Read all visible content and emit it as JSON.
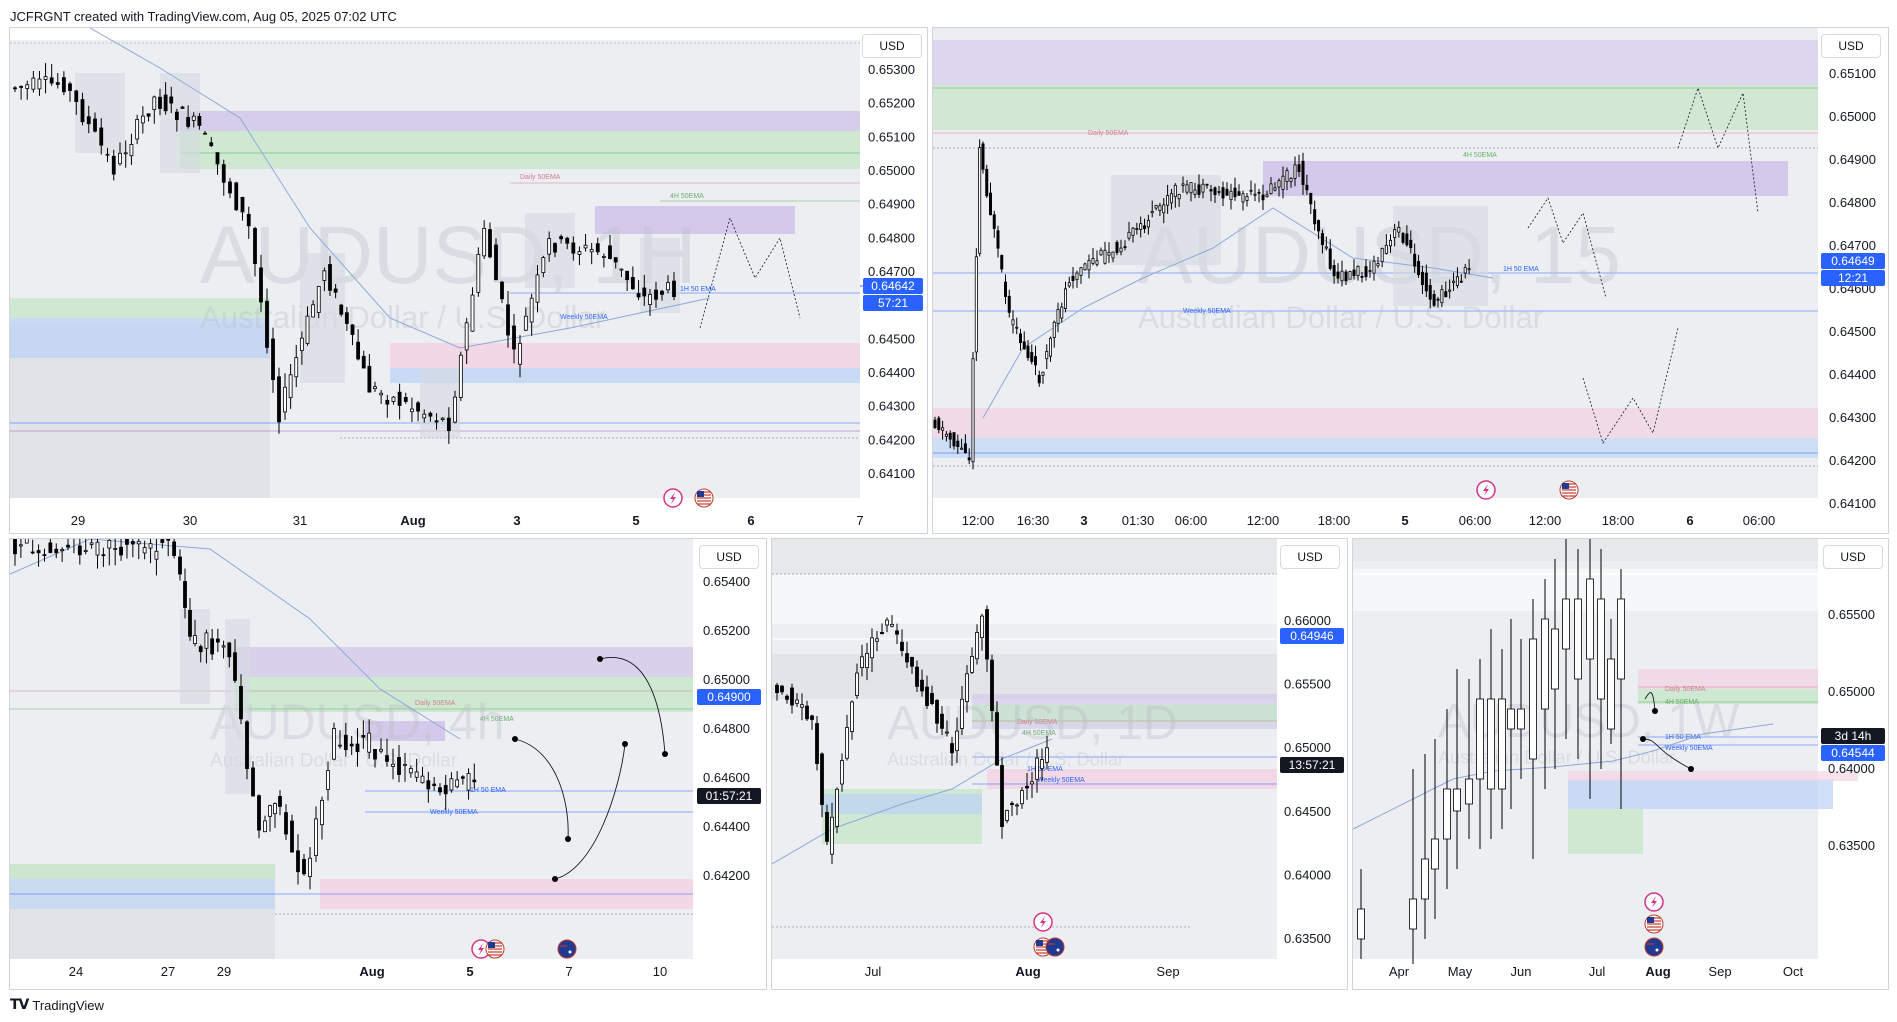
{
  "header_text": "JCFRGNT created with TradingView.com, Aug 05, 2025 07:02 UTC",
  "footer_text": "TradingView",
  "colors": {
    "up": "#ffffff",
    "down": "#000000",
    "ema": "#8fa8d8",
    "price_badge": "#2962ff",
    "timer_badge": "#131722",
    "green_zone": "#c8e6c9",
    "purple_zone": "#d1c4e9",
    "pink_zone": "#f3d5e4",
    "blue_zone": "#bbd3f5",
    "grey_zone": "#e0e3e8",
    "bg_zone": "#eceef2"
  },
  "icons": [
    "lightning-icon",
    "us-flag-icon",
    "au-flag-icon",
    "tradingview-logo-icon"
  ],
  "panels": [
    {
      "id": "tl",
      "currency": "USD",
      "watermark_symbol": "AUDUSD, 1H",
      "watermark_name": "Australian Dollar / U.S. Dollar",
      "price_labels": [
        "0.65300",
        "0.65200",
        "0.65100",
        "0.65000",
        "0.64900",
        "0.64800",
        "0.64700",
        "0.64600",
        "0.64500",
        "0.64400",
        "0.64300",
        "0.64200",
        "0.64100"
      ],
      "time_labels": [
        "29",
        "30",
        "31",
        "Aug",
        "3",
        "5",
        "6",
        "7"
      ],
      "price_badge": "0.64642",
      "timer_badge": "57:21",
      "level_labels": [
        "Daily 50EMA",
        "4H 50EMA",
        "1H 50 EMA",
        "Weekly 50EMA"
      ],
      "icons": [
        "lightning-icon",
        "us-flag-icon"
      ],
      "chart_data": {
        "type": "candlestick",
        "series": "AUDUSD",
        "ylim": [
          0.6408,
          0.6536
        ],
        "last": 0.64642
      }
    },
    {
      "id": "tr",
      "currency": "USD",
      "watermark_symbol": "AUDUSD, 15",
      "watermark_name": "Australian Dollar / U.S. Dollar",
      "price_labels": [
        "0.65100",
        "0.65000",
        "0.64900",
        "0.64800",
        "0.64700",
        "0.64600",
        "0.64500",
        "0.64400",
        "0.64300",
        "0.64200",
        "0.64100"
      ],
      "time_labels": [
        "12:00",
        "16:30",
        "3",
        "01:30",
        "06:00",
        "12:00",
        "18:00",
        "5",
        "06:00",
        "12:00",
        "18:00",
        "6",
        "06:00"
      ],
      "price_badge": "0.64649",
      "timer_badge": "12:21",
      "level_labels": [
        "Daily 50EMA",
        "4H 50EMA",
        "1H 50 EMA",
        "Weekly 50EMA"
      ],
      "icons": [
        "lightning-icon",
        "us-flag-icon"
      ],
      "chart_data": {
        "type": "candlestick",
        "series": "AUDUSD",
        "ylim": [
          0.6408,
          0.6516
        ],
        "last": 0.64649
      }
    },
    {
      "id": "bl",
      "currency": "USD",
      "watermark_symbol": "AUDUSD, 4h",
      "watermark_name": "Australian Dollar / U.S. Dollar",
      "price_labels": [
        "0.65400",
        "0.65200",
        "0.65000",
        "0.64800",
        "0.64600",
        "0.64400",
        "0.64200"
      ],
      "time_labels": [
        "24",
        "27",
        "29",
        "Aug",
        "5",
        "7",
        "10"
      ],
      "price_badge": "0.64900",
      "timer_badge": "01:57:21",
      "level_labels": [
        "Daily 50EMA",
        "4H 50EMA",
        "1H 50 EMA",
        "Weekly 50EMA"
      ],
      "icons": [
        "lightning-icon",
        "us-flag-icon",
        "au-flag-icon"
      ],
      "chart_data": {
        "type": "candlestick",
        "series": "AUDUSD",
        "ylim": [
          0.641,
          0.6555
        ],
        "last": 0.649
      }
    },
    {
      "id": "bm",
      "currency": "USD",
      "watermark_symbol": "AUDUSD, 1D",
      "watermark_name": "Australian Dollar / U.S. Dollar",
      "price_labels": [
        "0.66000",
        "0.65500",
        "0.65000",
        "0.64500",
        "0.64000",
        "0.63500"
      ],
      "time_labels": [
        "Jul",
        "Aug",
        "Sep"
      ],
      "price_badge": "0.64946",
      "timer_badge": "13:57:21",
      "level_labels": [
        "Daily 50EMA",
        "4H 50EMA",
        "1H 50 EMA",
        "Weekly 50EMA"
      ],
      "icons": [
        "lightning-icon",
        "us-flag-icon",
        "au-flag-icon"
      ],
      "chart_data": {
        "type": "candlestick",
        "series": "AUDUSD",
        "ylim": [
          0.6345,
          0.6625
        ],
        "last": 0.64946
      }
    },
    {
      "id": "br",
      "currency": "USD",
      "watermark_symbol": "AUDUSD, 1W",
      "watermark_name": "Australian Dollar / U.S. Dollar",
      "price_labels": [
        "0.65500",
        "0.65000",
        "0.64000",
        "0.63500"
      ],
      "time_labels": [
        "Apr",
        "May",
        "Jun",
        "Jul",
        "Aug",
        "Sep",
        "Oct"
      ],
      "price_badge": "0.64544",
      "timer_badge": "3d 14h",
      "level_labels": [
        "Daily 50EMA",
        "4H 50EMA",
        "1H 50 EMA",
        "Weekly 50EMA"
      ],
      "icons": [
        "lightning-icon",
        "us-flag-icon",
        "au-flag-icon"
      ],
      "chart_data": {
        "type": "candlestick",
        "series": "AUDUSD",
        "ylim": [
          0.63,
          0.66
        ],
        "last": 0.64544
      }
    }
  ]
}
